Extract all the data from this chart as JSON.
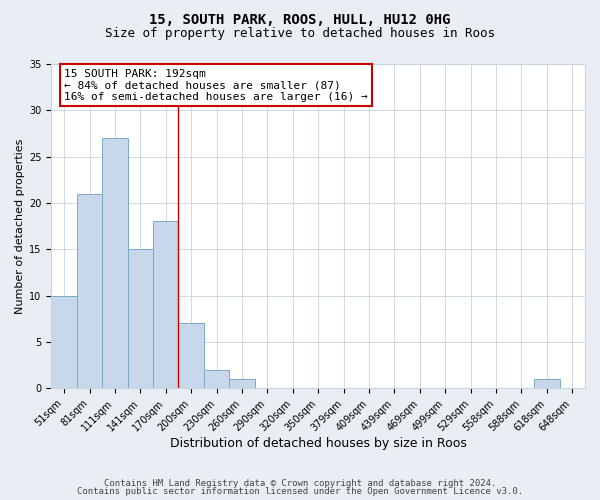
{
  "title": "15, SOUTH PARK, ROOS, HULL, HU12 0HG",
  "subtitle": "Size of property relative to detached houses in Roos",
  "xlabel": "Distribution of detached houses by size in Roos",
  "ylabel": "Number of detached properties",
  "bin_labels": [
    "51sqm",
    "81sqm",
    "111sqm",
    "141sqm",
    "170sqm",
    "200sqm",
    "230sqm",
    "260sqm",
    "290sqm",
    "320sqm",
    "350sqm",
    "379sqm",
    "409sqm",
    "439sqm",
    "469sqm",
    "499sqm",
    "529sqm",
    "558sqm",
    "588sqm",
    "618sqm",
    "648sqm"
  ],
  "bar_values": [
    10,
    21,
    27,
    15,
    18,
    7,
    2,
    1,
    0,
    0,
    0,
    0,
    0,
    0,
    0,
    0,
    0,
    0,
    0,
    1,
    0
  ],
  "bar_color": "#c8d8ea",
  "bar_edge_color": "#7aaac8",
  "bar_edge_width": 0.7,
  "vline_index": 5,
  "vline_color": "#cc0000",
  "annotation_text": "15 SOUTH PARK: 192sqm\n← 84% of detached houses are smaller (87)\n16% of semi-detached houses are larger (16) →",
  "annotation_box_color": "#ffffff",
  "annotation_box_edge_color": "#cc0000",
  "ylim": [
    0,
    35
  ],
  "yticks": [
    0,
    5,
    10,
    15,
    20,
    25,
    30,
    35
  ],
  "footer_line1": "Contains HM Land Registry data © Crown copyright and database right 2024.",
  "footer_line2": "Contains public sector information licensed under the Open Government Licence v3.0.",
  "background_color": "#e8eef4",
  "plot_background_color": "#ffffff",
  "grid_color": "#c8d4e0",
  "title_fontsize": 10,
  "subtitle_fontsize": 9,
  "xlabel_fontsize": 9,
  "ylabel_fontsize": 8,
  "tick_fontsize": 7,
  "annotation_fontsize": 8,
  "footer_fontsize": 6.5
}
